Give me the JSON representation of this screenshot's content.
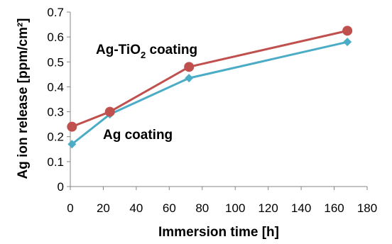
{
  "chart_data": {
    "type": "line",
    "xlabel": "Immersion time [h]",
    "ylabel": "Ag ion release [ppm/cm²]",
    "xlim": [
      0,
      180
    ],
    "ylim": [
      0,
      0.7
    ],
    "xticks": [
      "0",
      "20",
      "40",
      "60",
      "80",
      "100",
      "120",
      "140",
      "160",
      "180"
    ],
    "yticks": [
      "0",
      "0.1",
      "0.2",
      "0.3",
      "0.4",
      "0.5",
      "0.6",
      "0.7"
    ],
    "grid": false,
    "series": [
      {
        "name": "Ag-TiO2 coating",
        "label_main": "Ag-TiO",
        "label_sub": "2",
        "label_tail": " coating",
        "color": "#c0504d",
        "marker": "circle",
        "x": [
          1,
          24,
          72,
          168
        ],
        "y": [
          0.24,
          0.3,
          0.48,
          0.625
        ]
      },
      {
        "name": "Ag coating",
        "label_main": "Ag coating",
        "color": "#4bacc6",
        "marker": "diamond",
        "x": [
          1,
          24,
          72,
          168
        ],
        "y": [
          0.17,
          0.29,
          0.435,
          0.58
        ]
      }
    ]
  }
}
